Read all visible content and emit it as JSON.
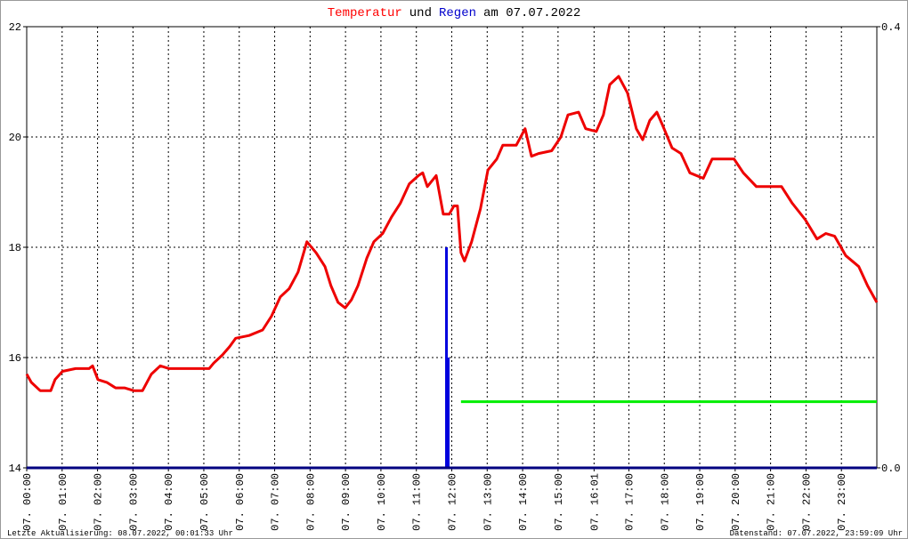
{
  "chart_data": {
    "type": "line",
    "title_parts": [
      {
        "text": "Temperatur",
        "color": "#ff0000"
      },
      {
        "text": "und",
        "color": "#000000"
      },
      {
        "text": "Regen",
        "color": "#0000cc"
      },
      {
        "text": "am 07.07.2022",
        "color": "#000000"
      }
    ],
    "xlim": [
      0,
      24
    ],
    "xticks": [
      {
        "value": 0,
        "label": "07. 00:00"
      },
      {
        "value": 1,
        "label": "07. 01:00"
      },
      {
        "value": 2,
        "label": "07. 02:00"
      },
      {
        "value": 3,
        "label": "07. 03:00"
      },
      {
        "value": 4,
        "label": "07. 04:00"
      },
      {
        "value": 5,
        "label": "07. 05:00"
      },
      {
        "value": 6,
        "label": "07. 06:00"
      },
      {
        "value": 7,
        "label": "07. 07:00"
      },
      {
        "value": 8,
        "label": "07. 08:00"
      },
      {
        "value": 9,
        "label": "07. 09:00"
      },
      {
        "value": 10,
        "label": "07. 10:00"
      },
      {
        "value": 11,
        "label": "07. 11:00"
      },
      {
        "value": 12,
        "label": "07. 12:00"
      },
      {
        "value": 13,
        "label": "07. 13:00"
      },
      {
        "value": 14,
        "label": "07. 14:00"
      },
      {
        "value": 15,
        "label": "07. 15:00"
      },
      {
        "value": 16.017,
        "label": "07. 16:01"
      },
      {
        "value": 17,
        "label": "07. 17:00"
      },
      {
        "value": 18,
        "label": "07. 18:00"
      },
      {
        "value": 19,
        "label": "07. 19:00"
      },
      {
        "value": 20,
        "label": "07. 20:00"
      },
      {
        "value": 21,
        "label": "07. 21:00"
      },
      {
        "value": 22,
        "label": "07. 22:00"
      },
      {
        "value": 23,
        "label": "07. 23:00"
      }
    ],
    "ylim": [
      14,
      22
    ],
    "yticks": [
      14,
      16,
      18,
      20,
      22
    ],
    "y2lim": [
      0,
      0.4
    ],
    "y2ticks": [
      {
        "value": 0,
        "label": "0.0"
      },
      {
        "value": 0.4,
        "label": "0.4"
      }
    ],
    "grid": true,
    "series": [
      {
        "type": "line",
        "color": "#ee0000",
        "x": [
          0,
          0.13,
          0.38,
          0.68,
          0.8,
          1.01,
          1.38,
          1.76,
          1.86,
          2.01,
          2.26,
          2.51,
          2.76,
          3.02,
          3.27,
          3.52,
          3.77,
          4.02,
          4.52,
          5.15,
          5.28,
          5.53,
          5.73,
          5.9,
          6.28,
          6.66,
          6.91,
          7.16,
          7.41,
          7.66,
          7.91,
          8.17,
          8.42,
          8.59,
          8.79,
          8.99,
          9.17,
          9.35,
          9.6,
          9.8,
          10.05,
          10.3,
          10.55,
          10.8,
          11.06,
          11.18,
          11.31,
          11.56,
          11.76,
          11.93,
          12.06,
          12.16,
          12.26,
          12.36,
          12.56,
          12.81,
          13.02,
          13.27,
          13.44,
          13.82,
          14.07,
          14.25,
          14.45,
          14.82,
          15.08,
          15.28,
          15.58,
          15.78,
          16.08,
          16.28,
          16.46,
          16.71,
          16.96,
          17.21,
          17.39,
          17.59,
          17.79,
          17.96,
          18.22,
          18.47,
          18.72,
          19.1,
          19.35,
          19.6,
          19.97,
          20.23,
          20.6,
          21.31,
          21.61,
          21.98,
          22.31,
          22.56,
          22.81,
          23.12,
          23.49,
          23.74,
          24
        ],
        "values": [
          15.7,
          15.55,
          15.4,
          15.4,
          15.6,
          15.75,
          15.8,
          15.8,
          15.85,
          15.6,
          15.55,
          15.45,
          15.45,
          15.4,
          15.4,
          15.7,
          15.85,
          15.8,
          15.8,
          15.8,
          15.9,
          16.05,
          16.2,
          16.35,
          16.4,
          16.5,
          16.75,
          17.1,
          17.25,
          17.55,
          18.1,
          17.9,
          17.65,
          17.3,
          17.0,
          16.9,
          17.05,
          17.3,
          17.8,
          18.1,
          18.25,
          18.55,
          18.8,
          19.15,
          19.3,
          19.35,
          19.1,
          19.3,
          18.6,
          18.6,
          18.75,
          18.75,
          17.9,
          17.75,
          18.1,
          18.7,
          19.4,
          19.6,
          19.85,
          19.85,
          20.15,
          19.65,
          19.7,
          19.75,
          20.0,
          20.4,
          20.45,
          20.15,
          20.1,
          20.4,
          20.95,
          21.1,
          20.8,
          20.15,
          19.95,
          20.3,
          20.45,
          20.2,
          19.8,
          19.7,
          19.35,
          19.25,
          19.6,
          19.6,
          19.6,
          19.35,
          19.1,
          19.1,
          18.8,
          18.5,
          18.15,
          18.25,
          18.2,
          17.85,
          17.65,
          17.3,
          17.0
        ]
      },
      {
        "type": "bar",
        "color": "#0000dd",
        "axis": "y2",
        "x": [
          11.85,
          11.9
        ],
        "values": [
          0.2,
          0.1
        ]
      },
      {
        "type": "line",
        "color": "#00ee00",
        "axis": "y2",
        "x": [
          12.26,
          24
        ],
        "values": [
          0.06,
          0.06
        ]
      }
    ]
  },
  "footer": {
    "left": "Letzte Aktualisierung: 08.07.2022, 00:01:33 Uhr",
    "right": "Datenstand: 07.07.2022, 23:59:09 Uhr"
  }
}
